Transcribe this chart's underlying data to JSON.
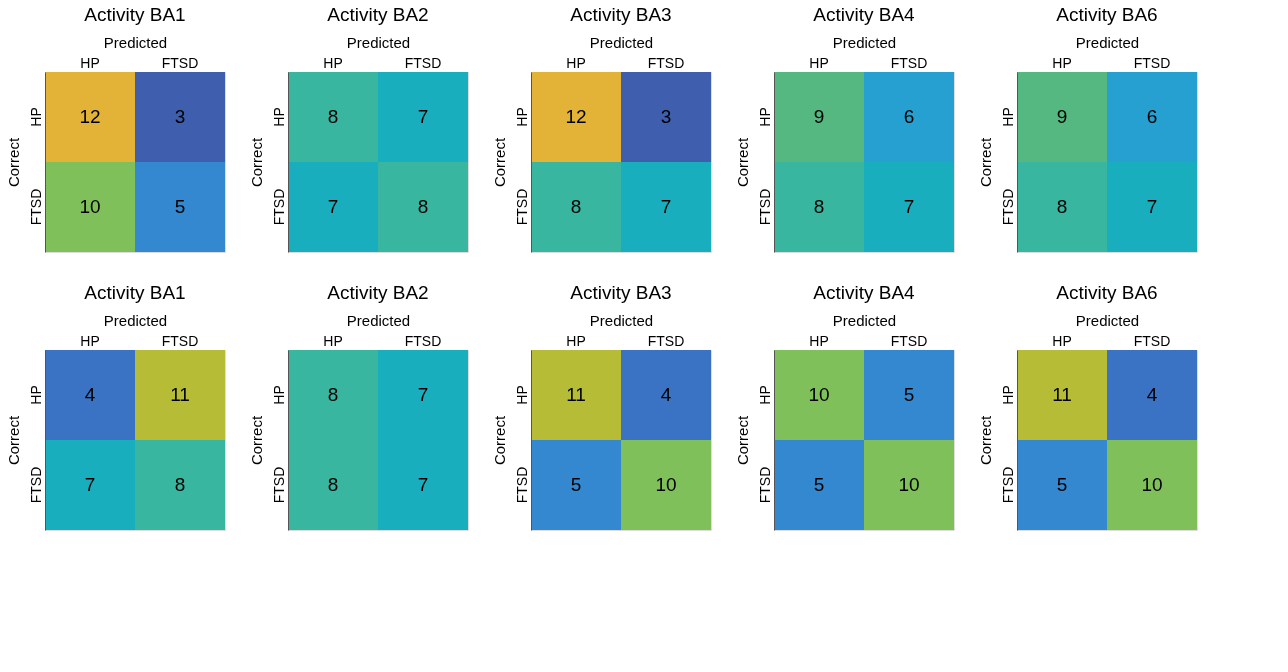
{
  "chart_data": [
    {
      "type": "heatmap",
      "title": "Activity BA1",
      "xlabel": "Predicted",
      "ylabel": "Correct",
      "categories": [
        "HP",
        "FTSD"
      ],
      "y_categories": [
        "HP",
        "FTSD"
      ],
      "cells": [
        [
          12,
          3
        ],
        [
          10,
          5
        ]
      ],
      "data_labels": true,
      "legend": false
    },
    {
      "type": "heatmap",
      "title": "Activity BA2",
      "xlabel": "Predicted",
      "ylabel": "Correct",
      "categories": [
        "HP",
        "FTSD"
      ],
      "y_categories": [
        "HP",
        "FTSD"
      ],
      "cells": [
        [
          8,
          7
        ],
        [
          7,
          8
        ]
      ],
      "data_labels": true,
      "legend": false
    },
    {
      "type": "heatmap",
      "title": "Activity BA3",
      "xlabel": "Predicted",
      "ylabel": "Correct",
      "categories": [
        "HP",
        "FTSD"
      ],
      "y_categories": [
        "HP",
        "FTSD"
      ],
      "cells": [
        [
          12,
          3
        ],
        [
          8,
          7
        ]
      ],
      "data_labels": true,
      "legend": false
    },
    {
      "type": "heatmap",
      "title": "Activity BA4",
      "xlabel": "Predicted",
      "ylabel": "Correct",
      "categories": [
        "HP",
        "FTSD"
      ],
      "y_categories": [
        "HP",
        "FTSD"
      ],
      "cells": [
        [
          9,
          6
        ],
        [
          8,
          7
        ]
      ],
      "data_labels": true,
      "legend": false
    },
    {
      "type": "heatmap",
      "title": "Activity BA6",
      "xlabel": "Predicted",
      "ylabel": "Correct",
      "categories": [
        "HP",
        "FTSD"
      ],
      "y_categories": [
        "HP",
        "FTSD"
      ],
      "cells": [
        [
          9,
          6
        ],
        [
          8,
          7
        ]
      ],
      "data_labels": true,
      "legend": false
    },
    {
      "type": "heatmap",
      "title": "Activity BA1",
      "xlabel": "Predicted",
      "ylabel": "Correct",
      "categories": [
        "HP",
        "FTSD"
      ],
      "y_categories": [
        "HP",
        "FTSD"
      ],
      "cells": [
        [
          4,
          11
        ],
        [
          7,
          8
        ]
      ],
      "data_labels": true,
      "legend": false
    },
    {
      "type": "heatmap",
      "title": "Activity BA2",
      "xlabel": "Predicted",
      "ylabel": "Correct",
      "categories": [
        "HP",
        "FTSD"
      ],
      "y_categories": [
        "HP",
        "FTSD"
      ],
      "cells": [
        [
          8,
          7
        ],
        [
          8,
          7
        ]
      ],
      "data_labels": true,
      "legend": false
    },
    {
      "type": "heatmap",
      "title": "Activity BA3",
      "xlabel": "Predicted",
      "ylabel": "Correct",
      "categories": [
        "HP",
        "FTSD"
      ],
      "y_categories": [
        "HP",
        "FTSD"
      ],
      "cells": [
        [
          11,
          4
        ],
        [
          5,
          10
        ]
      ],
      "data_labels": true,
      "legend": false
    },
    {
      "type": "heatmap",
      "title": "Activity BA4",
      "xlabel": "Predicted",
      "ylabel": "Correct",
      "categories": [
        "HP",
        "FTSD"
      ],
      "y_categories": [
        "HP",
        "FTSD"
      ],
      "cells": [
        [
          10,
          5
        ],
        [
          5,
          10
        ]
      ],
      "data_labels": true,
      "legend": false
    },
    {
      "type": "heatmap",
      "title": "Activity BA6",
      "xlabel": "Predicted",
      "ylabel": "Correct",
      "categories": [
        "HP",
        "FTSD"
      ],
      "y_categories": [
        "HP",
        "FTSD"
      ],
      "cells": [
        [
          11,
          4
        ],
        [
          5,
          10
        ]
      ],
      "data_labels": true,
      "legend": false
    }
  ]
}
